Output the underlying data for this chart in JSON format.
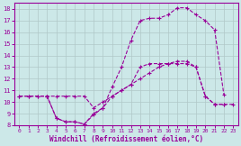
{
  "background_color": "#cce8e8",
  "grid_color": "#b0c8c8",
  "line_color": "#990099",
  "spine_color": "#990099",
  "xlim": [
    -0.5,
    23.5
  ],
  "ylim": [
    8,
    18.5
  ],
  "xticks": [
    0,
    1,
    2,
    3,
    4,
    5,
    6,
    7,
    8,
    9,
    10,
    11,
    12,
    13,
    14,
    15,
    16,
    17,
    18,
    19,
    20,
    21,
    22,
    23
  ],
  "yticks": [
    8,
    9,
    10,
    11,
    12,
    13,
    14,
    15,
    16,
    17,
    18
  ],
  "xlabel": "Windchill (Refroidissement éolien,°C)",
  "series1_x": [
    0,
    1,
    2,
    3,
    4,
    5,
    6,
    7,
    8,
    9,
    10,
    11,
    12,
    13,
    14,
    15,
    16,
    17,
    18,
    19,
    20,
    21,
    22,
    23
  ],
  "series1_y": [
    10.5,
    10.5,
    10.5,
    10.5,
    10.5,
    10.5,
    10.5,
    10.5,
    9.5,
    10.0,
    10.5,
    11.0,
    11.5,
    12.0,
    12.5,
    13.0,
    13.3,
    13.5,
    13.5,
    13.0,
    10.5,
    9.8,
    9.8,
    9.8
  ],
  "series2_x": [
    0,
    1,
    2,
    3,
    4,
    5,
    6,
    7,
    8,
    9,
    10,
    11,
    12,
    13,
    14,
    15,
    16,
    17,
    18,
    19,
    20,
    21,
    22
  ],
  "series2_y": [
    10.5,
    10.5,
    10.5,
    10.5,
    8.6,
    8.3,
    8.3,
    8.1,
    9.0,
    9.5,
    11.3,
    13.0,
    15.3,
    17.0,
    17.2,
    17.2,
    17.5,
    18.1,
    18.1,
    17.5,
    17.0,
    16.2,
    10.6
  ],
  "series3_x": [
    3,
    4,
    5,
    6,
    7,
    8,
    9,
    10,
    11,
    12,
    13,
    14,
    15,
    16,
    17,
    18,
    19,
    20,
    21,
    22
  ],
  "series3_y": [
    10.5,
    8.6,
    8.3,
    8.3,
    8.1,
    8.9,
    9.5,
    10.5,
    11.0,
    11.5,
    13.0,
    13.3,
    13.3,
    13.3,
    13.3,
    13.3,
    13.0,
    10.5,
    9.8,
    9.8
  ]
}
